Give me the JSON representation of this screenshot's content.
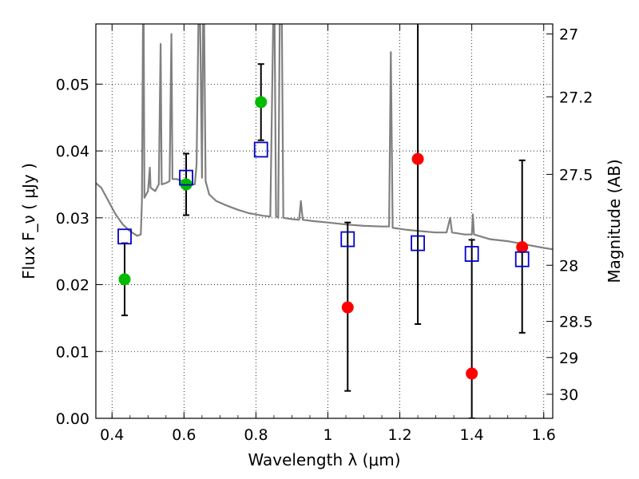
{
  "chart_data": {
    "type": "scatter",
    "xlabel": "Wavelength  λ (μm)",
    "ylabel": "Flux  F_ν  ( μJy )",
    "ylabel_right": "Magnitude (AB)",
    "xlim": [
      0.355,
      1.625
    ],
    "ylim": [
      0.0,
      0.059
    ],
    "x_ticks": [
      0.4,
      0.6,
      0.8,
      1.0,
      1.2,
      1.4,
      1.6
    ],
    "x_tick_labels": [
      "0.4",
      "0.6",
      "0.8",
      "1",
      "1.2",
      "1.4",
      "1.6"
    ],
    "y_ticks": [
      0.0,
      0.01,
      0.02,
      0.03,
      0.04,
      0.05
    ],
    "y_tick_labels": [
      "0.00",
      "0.01",
      "0.02",
      "0.03",
      "0.04",
      "0.05"
    ],
    "right_ticks": [
      {
        "label": "27",
        "flux": 0.0575
      },
      {
        "label": "27.2",
        "flux": 0.0481
      },
      {
        "label": "27.5",
        "flux": 0.0365
      },
      {
        "label": "28",
        "flux": 0.0229
      },
      {
        "label": "28.5",
        "flux": 0.0145
      },
      {
        "label": "29",
        "flux": 0.0091
      },
      {
        "label": "30",
        "flux": 0.0036
      }
    ],
    "grid": true,
    "colors": {
      "detection": "#00bb00",
      "upper_limit": "#ff0000",
      "model_band": "#0000cc",
      "errorbar": "#000000",
      "spectrum": "#808080"
    },
    "series": [
      {
        "kind": "detection",
        "points": [
          {
            "x": 0.435,
            "y": 0.0208,
            "err_lo": 0.0054,
            "err_hi": 0.0054
          },
          {
            "x": 0.606,
            "y": 0.035,
            "err_lo": 0.0046,
            "err_hi": 0.0046
          },
          {
            "x": 0.814,
            "y": 0.0473,
            "err_lo": 0.0057,
            "err_hi": 0.0057
          }
        ]
      },
      {
        "kind": "upper_limit",
        "points": [
          {
            "x": 1.055,
            "y": 0.0166,
            "err_lo": 0.0125,
            "err_hi": 0.0127
          },
          {
            "x": 1.25,
            "y": 0.0388,
            "err_lo": 0.0247,
            "err_hi": 0.0262
          },
          {
            "x": 1.4,
            "y": 0.0067,
            "err_lo": 0.0067,
            "err_hi": 0.02
          },
          {
            "x": 1.54,
            "y": 0.0256,
            "err_lo": 0.0128,
            "err_hi": 0.013
          }
        ]
      },
      {
        "kind": "model_band",
        "points": [
          {
            "x": 0.435,
            "y": 0.0272
          },
          {
            "x": 0.606,
            "y": 0.036
          },
          {
            "x": 0.814,
            "y": 0.0402
          },
          {
            "x": 1.055,
            "y": 0.0268
          },
          {
            "x": 1.25,
            "y": 0.0262
          },
          {
            "x": 1.4,
            "y": 0.0246
          },
          {
            "x": 1.54,
            "y": 0.0238
          }
        ]
      }
    ],
    "spectrum": [
      [
        0.355,
        0.0352
      ],
      [
        0.37,
        0.0345
      ],
      [
        0.39,
        0.0325
      ],
      [
        0.41,
        0.0305
      ],
      [
        0.43,
        0.029
      ],
      [
        0.45,
        0.028
      ],
      [
        0.47,
        0.0273
      ],
      [
        0.48,
        0.0275
      ],
      [
        0.483,
        0.0325
      ],
      [
        0.486,
        0.059
      ],
      [
        0.488,
        0.059
      ],
      [
        0.49,
        0.033
      ],
      [
        0.5,
        0.034
      ],
      [
        0.505,
        0.0375
      ],
      [
        0.507,
        0.0345
      ],
      [
        0.52,
        0.034
      ],
      [
        0.53,
        0.035
      ],
      [
        0.535,
        0.056
      ],
      [
        0.538,
        0.035
      ],
      [
        0.55,
        0.0352
      ],
      [
        0.56,
        0.0355
      ],
      [
        0.565,
        0.0575
      ],
      [
        0.568,
        0.0358
      ],
      [
        0.58,
        0.0358
      ],
      [
        0.59,
        0.0356
      ],
      [
        0.6,
        0.0355
      ],
      [
        0.62,
        0.035
      ],
      [
        0.63,
        0.035
      ],
      [
        0.635,
        0.038
      ],
      [
        0.64,
        0.059
      ],
      [
        0.645,
        0.059
      ],
      [
        0.65,
        0.036
      ],
      [
        0.653,
        0.059
      ],
      [
        0.656,
        0.059
      ],
      [
        0.66,
        0.0355
      ],
      [
        0.67,
        0.0335
      ],
      [
        0.69,
        0.0325
      ],
      [
        0.72,
        0.0318
      ],
      [
        0.75,
        0.0312
      ],
      [
        0.78,
        0.0307
      ],
      [
        0.8,
        0.0305
      ],
      [
        0.82,
        0.0303
      ],
      [
        0.84,
        0.0302
      ],
      [
        0.848,
        0.059
      ],
      [
        0.852,
        0.059
      ],
      [
        0.856,
        0.0302
      ],
      [
        0.862,
        0.03
      ],
      [
        0.866,
        0.059
      ],
      [
        0.872,
        0.059
      ],
      [
        0.876,
        0.03
      ],
      [
        0.9,
        0.0298
      ],
      [
        0.92,
        0.0297
      ],
      [
        0.925,
        0.0325
      ],
      [
        0.93,
        0.0297
      ],
      [
        0.96,
        0.0295
      ],
      [
        1.0,
        0.0293
      ],
      [
        1.05,
        0.029
      ],
      [
        1.1,
        0.0288
      ],
      [
        1.15,
        0.0287
      ],
      [
        1.17,
        0.0287
      ],
      [
        1.175,
        0.0548
      ],
      [
        1.18,
        0.0285
      ],
      [
        1.22,
        0.0282
      ],
      [
        1.26,
        0.028
      ],
      [
        1.3,
        0.0278
      ],
      [
        1.33,
        0.0278
      ],
      [
        1.34,
        0.03
      ],
      [
        1.345,
        0.0278
      ],
      [
        1.38,
        0.0275
      ],
      [
        1.4,
        0.0275
      ],
      [
        1.403,
        0.0305
      ],
      [
        1.406,
        0.0275
      ],
      [
        1.45,
        0.0268
      ],
      [
        1.5,
        0.0265
      ],
      [
        1.55,
        0.026
      ],
      [
        1.6,
        0.0255
      ],
      [
        1.625,
        0.0253
      ]
    ]
  }
}
